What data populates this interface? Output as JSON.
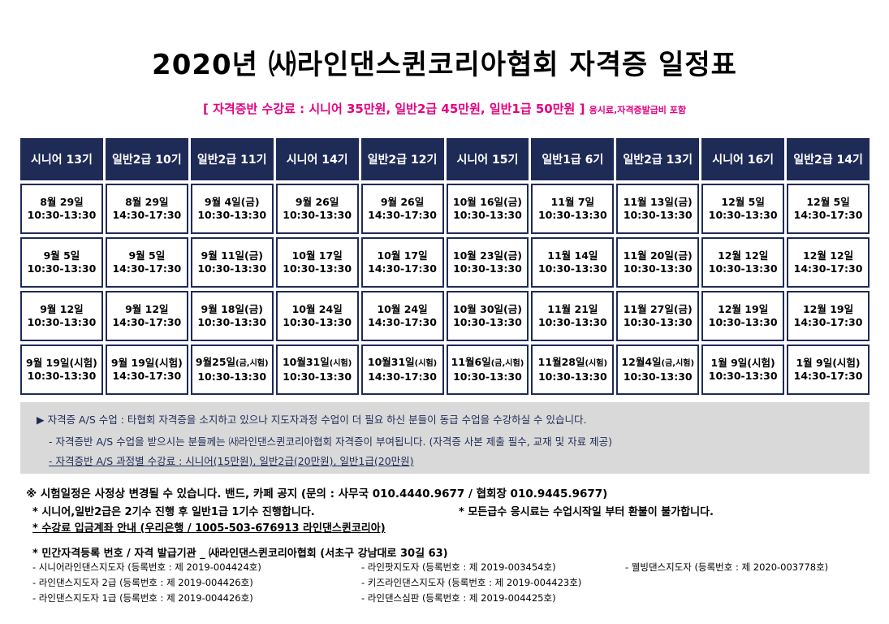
{
  "title": "2020년 ㈔라인댄스퀸코리아협회 자격증 일정표",
  "subtitle": {
    "main": "[ 자격증반 수강료 : 시니어 35만원, 일반2급 45만원, 일반1급 50만원 ]",
    "note": "응시료,자격증발급비 포함"
  },
  "schedule": {
    "headers": [
      "시니어 13기",
      "일반2급 10기",
      "일반2급 11기",
      "시니어 14기",
      "일반2급 12기",
      "시니어 15기",
      "일반1급 6기",
      "일반2급 13기",
      "시니어 16기",
      "일반2급 14기"
    ],
    "rows": [
      [
        {
          "d": "8월 29일",
          "p": "",
          "t": "10:30-13:30"
        },
        {
          "d": "8월 29일",
          "p": "",
          "t": "14:30-17:30"
        },
        {
          "d": "9월 4일(금)",
          "p": "",
          "t": "10:30-13:30"
        },
        {
          "d": "9월 26일",
          "p": "",
          "t": "10:30-13:30"
        },
        {
          "d": "9월 26일",
          "p": "",
          "t": "14:30-17:30"
        },
        {
          "d": "10월 16일(금)",
          "p": "",
          "t": "10:30-13:30"
        },
        {
          "d": "11월 7일",
          "p": "",
          "t": "10:30-13:30"
        },
        {
          "d": "11월 13일(금)",
          "p": "",
          "t": "10:30-13:30"
        },
        {
          "d": "12월 5일",
          "p": "",
          "t": "10:30-13:30"
        },
        {
          "d": "12월 5일",
          "p": "",
          "t": "14:30-17:30"
        }
      ],
      [
        {
          "d": "9월 5일",
          "p": "",
          "t": "10:30-13:30"
        },
        {
          "d": "9월 5일",
          "p": "",
          "t": "14:30-17:30"
        },
        {
          "d": "9월 11일(금)",
          "p": "",
          "t": "10:30-13:30"
        },
        {
          "d": "10월 17일",
          "p": "",
          "t": "10:30-13:30"
        },
        {
          "d": "10월 17일",
          "p": "",
          "t": "14:30-17:30"
        },
        {
          "d": "10월 23일(금)",
          "p": "",
          "t": "10:30-13:30"
        },
        {
          "d": "11월 14일",
          "p": "",
          "t": "10:30-13:30"
        },
        {
          "d": "11월 20일(금)",
          "p": "",
          "t": "10:30-13:30"
        },
        {
          "d": "12월 12일",
          "p": "",
          "t": "10:30-13:30"
        },
        {
          "d": "12월 12일",
          "p": "",
          "t": "14:30-17:30"
        }
      ],
      [
        {
          "d": "9월 12일",
          "p": "",
          "t": "10:30-13:30"
        },
        {
          "d": "9월 12일",
          "p": "",
          "t": "14:30-17:30"
        },
        {
          "d": "9월 18일(금)",
          "p": "",
          "t": "10:30-13:30"
        },
        {
          "d": "10월 24일",
          "p": "",
          "t": "10:30-13:30"
        },
        {
          "d": "10월 24일",
          "p": "",
          "t": "14:30-17:30"
        },
        {
          "d": "10월 30일(금)",
          "p": "",
          "t": "10:30-13:30"
        },
        {
          "d": "11월 21일",
          "p": "",
          "t": "10:30-13:30"
        },
        {
          "d": "11월 27일(금)",
          "p": "",
          "t": "10:30-13:30"
        },
        {
          "d": "12월 19일",
          "p": "",
          "t": "10:30-13:30"
        },
        {
          "d": "12월 19일",
          "p": "",
          "t": "14:30-17:30"
        }
      ],
      [
        {
          "d": "9월 19일(시험)",
          "p": "",
          "t": "10:30-13:30"
        },
        {
          "d": "9월 19일(시험)",
          "p": "",
          "t": "14:30-17:30"
        },
        {
          "d": "9월25일",
          "p": "(금,시험)",
          "t": "10:30-13:30"
        },
        {
          "d": "10월31일",
          "p": "(시험)",
          "t": "10:30-13:30"
        },
        {
          "d": "10월31일",
          "p": "(시험)",
          "t": "14:30-17:30"
        },
        {
          "d": "11월6일",
          "p": "(금,시험)",
          "t": "10:30-13:30"
        },
        {
          "d": "11월28일",
          "p": "(시험)",
          "t": "10:30-13:30"
        },
        {
          "d": "12월4일",
          "p": "(금,시험)",
          "t": "10:30-13:30"
        },
        {
          "d": "1월 9일(시험)",
          "p": "",
          "t": "10:30-13:30"
        },
        {
          "d": "1월 9일(시험)",
          "p": "",
          "t": "14:30-17:30"
        }
      ]
    ]
  },
  "info": {
    "line1": "▶ 자격증 A/S 수업 : 타협회 자격증을 소지하고 있으나 지도자과정 수업이 더 필요 하신 분들이 동급 수업을 수강하실 수 있습니다.",
    "line2": "- 자격증반 A/S 수업을 받으시는 분들께는 ㈔라인댄스퀸코리아협회 자격증이 부여됩니다. (자격증 사본 제출 필수, 교재 및 자료 제공)",
    "line3": "- 자격증반 A/S 과정별 수강료 : 시니어(15만원), 일반2급(20만원), 일반1급(20만원)"
  },
  "notes": {
    "n1": "※ 시험일정은 사정상 변경될 수 있습니다. 밴드, 카페 공지 (문의 : 사무국 010.4440.9677 /  협회장 010.9445.9677)",
    "n2": "* 시니어,일반2급은 2기수 진행 후 일반1급 1기수 진행합니다.",
    "n3": "* 모든급수 응시료는 수업시작일 부터 환불이 불가합니다.",
    "n4": "* 수강료 입금계좌 안내 (우리은행 / 1005-503-676913 라인댄스퀸코리아)",
    "n5": "* 민간자격등록 번호 / 자격 발급기관 _ ㈔라인댄스퀸코리아협회 (서초구 강남대로 30길 63)"
  },
  "registrations": [
    "- 시니어라인댄스지도자 (등록번호 : 제 2019-004424호)",
    "- 라인팟지도자 (등록번호 : 제 2019-003454호)",
    "- 웰빙댄스지도자 (등록번호 : 제 2020-003778호)",
    "- 라인댄스지도자 2급 (등록번호 : 제 2019-004426호)",
    "- 키즈라인댄스지도자 (등록번호 : 제 2019-004423호)",
    "- 라인댄스지도자 1급 (등록번호 : 제 2019-004426호)",
    "- 라인댄스심판 (등록번호 : 제 2019-004425호)"
  ],
  "colors": {
    "navy": "#1f2b57",
    "pink": "#e4007f",
    "gray": "#d9d9d9"
  }
}
